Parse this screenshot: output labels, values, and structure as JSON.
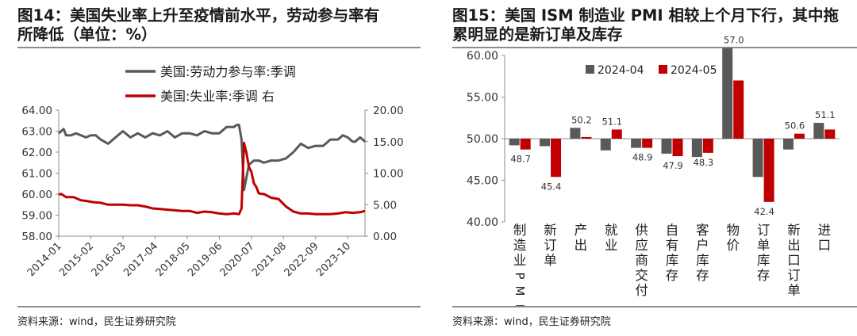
{
  "left_panel": {
    "title_line1": "图14：美国失业率上升至疫情前水平，劳动参与率有",
    "title_line2": "所降低（单位：%）",
    "source": "资料来源：wind，民生证券研究院"
  },
  "right_panel": {
    "title_line1": "图15：美国 ISM 制造业 PMI 相较上个月下行，其中拖",
    "title_line2": "累明显的是新订单及库存",
    "source": "资料来源：wind，民生证券研究院"
  },
  "colors": {
    "gray": "#595959",
    "red": "#c00000",
    "rule": "#8c8c8c"
  },
  "chart_data": [
    {
      "type": "line",
      "x_ticks": [
        "2014-01",
        "2015-02",
        "2016-03",
        "2017-04",
        "2018-05",
        "2019-06",
        "2020-07",
        "2021-08",
        "2022-09",
        "2023-10"
      ],
      "x_range": [
        "2014-01",
        "2024-05"
      ],
      "y_left": {
        "ticks": [
          "58.00",
          "59.00",
          "60.00",
          "61.00",
          "62.00",
          "63.00",
          "64.00"
        ],
        "range": [
          58,
          64
        ]
      },
      "y_right": {
        "ticks": [
          "0.00",
          "5.00",
          "10.00",
          "15.00",
          "20.00"
        ],
        "range": [
          0,
          20
        ]
      },
      "legend_position": "top-center",
      "series": [
        {
          "name": "美国:劳动力参与率:季调",
          "axis": "left",
          "color": "#595959",
          "points": [
            [
              "2014-01",
              62.9
            ],
            [
              "2014-02",
              63.0
            ],
            [
              "2014-03",
              63.1
            ],
            [
              "2014-04",
              62.8
            ],
            [
              "2014-06",
              62.8
            ],
            [
              "2014-08",
              62.9
            ],
            [
              "2014-10",
              62.8
            ],
            [
              "2014-12",
              62.7
            ],
            [
              "2015-02",
              62.8
            ],
            [
              "2015-04",
              62.8
            ],
            [
              "2015-06",
              62.6
            ],
            [
              "2015-09",
              62.4
            ],
            [
              "2015-12",
              62.7
            ],
            [
              "2016-03",
              63.0
            ],
            [
              "2016-06",
              62.7
            ],
            [
              "2016-09",
              62.9
            ],
            [
              "2016-12",
              62.7
            ],
            [
              "2017-03",
              62.9
            ],
            [
              "2017-06",
              62.8
            ],
            [
              "2017-09",
              63.0
            ],
            [
              "2017-12",
              62.7
            ],
            [
              "2018-03",
              62.9
            ],
            [
              "2018-06",
              62.9
            ],
            [
              "2018-09",
              62.8
            ],
            [
              "2018-12",
              63.0
            ],
            [
              "2019-03",
              62.9
            ],
            [
              "2019-06",
              62.9
            ],
            [
              "2019-09",
              63.2
            ],
            [
              "2019-12",
              63.2
            ],
            [
              "2020-01",
              63.3
            ],
            [
              "2020-02",
              63.3
            ],
            [
              "2020-03",
              62.6
            ],
            [
              "2020-04",
              60.2
            ],
            [
              "2020-05",
              60.8
            ],
            [
              "2020-06",
              61.4
            ],
            [
              "2020-07",
              61.5
            ],
            [
              "2020-08",
              61.6
            ],
            [
              "2020-10",
              61.6
            ],
            [
              "2020-12",
              61.5
            ],
            [
              "2021-03",
              61.6
            ],
            [
              "2021-06",
              61.6
            ],
            [
              "2021-09",
              61.7
            ],
            [
              "2021-12",
              62.0
            ],
            [
              "2022-03",
              62.4
            ],
            [
              "2022-06",
              62.2
            ],
            [
              "2022-09",
              62.3
            ],
            [
              "2022-12",
              62.3
            ],
            [
              "2023-03",
              62.6
            ],
            [
              "2023-06",
              62.6
            ],
            [
              "2023-08",
              62.8
            ],
            [
              "2023-10",
              62.7
            ],
            [
              "2023-12",
              62.5
            ],
            [
              "2024-01",
              62.5
            ],
            [
              "2024-03",
              62.7
            ],
            [
              "2024-05",
              62.5
            ]
          ]
        },
        {
          "name": "美国:失业率:季调 右",
          "axis": "right",
          "color": "#c00000",
          "points": [
            [
              "2014-01",
              6.6
            ],
            [
              "2014-02",
              6.7
            ],
            [
              "2014-04",
              6.2
            ],
            [
              "2014-07",
              6.2
            ],
            [
              "2014-10",
              5.7
            ],
            [
              "2014-12",
              5.6
            ],
            [
              "2015-03",
              5.4
            ],
            [
              "2015-06",
              5.3
            ],
            [
              "2015-09",
              5.0
            ],
            [
              "2015-12",
              5.0
            ],
            [
              "2016-03",
              5.0
            ],
            [
              "2016-06",
              4.9
            ],
            [
              "2016-09",
              4.9
            ],
            [
              "2016-12",
              4.7
            ],
            [
              "2017-03",
              4.4
            ],
            [
              "2017-06",
              4.3
            ],
            [
              "2017-09",
              4.2
            ],
            [
              "2017-12",
              4.1
            ],
            [
              "2018-03",
              4.0
            ],
            [
              "2018-06",
              4.0
            ],
            [
              "2018-09",
              3.7
            ],
            [
              "2018-12",
              3.9
            ],
            [
              "2019-03",
              3.8
            ],
            [
              "2019-06",
              3.6
            ],
            [
              "2019-09",
              3.5
            ],
            [
              "2019-12",
              3.6
            ],
            [
              "2020-02",
              3.5
            ],
            [
              "2020-03",
              4.4
            ],
            [
              "2020-04",
              14.8
            ],
            [
              "2020-05",
              13.2
            ],
            [
              "2020-06",
              11.0
            ],
            [
              "2020-07",
              10.2
            ],
            [
              "2020-08",
              8.4
            ],
            [
              "2020-09",
              7.8
            ],
            [
              "2020-10",
              6.8
            ],
            [
              "2020-11",
              6.7
            ],
            [
              "2020-12",
              6.7
            ],
            [
              "2021-03",
              6.1
            ],
            [
              "2021-06",
              5.9
            ],
            [
              "2021-09",
              4.7
            ],
            [
              "2021-12",
              3.9
            ],
            [
              "2022-03",
              3.6
            ],
            [
              "2022-06",
              3.6
            ],
            [
              "2022-09",
              3.5
            ],
            [
              "2022-12",
              3.5
            ],
            [
              "2023-03",
              3.5
            ],
            [
              "2023-06",
              3.6
            ],
            [
              "2023-09",
              3.8
            ],
            [
              "2023-12",
              3.7
            ],
            [
              "2024-03",
              3.8
            ],
            [
              "2024-05",
              4.0
            ]
          ]
        }
      ]
    },
    {
      "type": "bar",
      "categories": [
        "制造业PMI",
        "新订单",
        "产出",
        "就业",
        "供应商交付",
        "自有库存",
        "客户库存",
        "物价",
        "订单库存",
        "新出口订单",
        "进口"
      ],
      "ylim": [
        40,
        60
      ],
      "y_ticks": [
        "40.00",
        "45.00",
        "50.00",
        "55.00",
        "60.00"
      ],
      "legend_position": "top-left",
      "series": [
        {
          "name": "2024-04",
          "color": "#595959",
          "values": [
            49.2,
            49.1,
            51.3,
            48.6,
            48.9,
            48.2,
            47.8,
            60.9,
            45.4,
            48.7,
            51.9
          ]
        },
        {
          "name": "2024-05",
          "color": "#c00000",
          "values": [
            48.7,
            45.4,
            50.2,
            51.1,
            48.9,
            47.9,
            48.3,
            57.0,
            42.4,
            50.6,
            51.1
          ]
        }
      ],
      "data_labels": [
        "48.7",
        "45.4",
        "50.2",
        "51.1",
        "48.9",
        "47.9",
        "48.3",
        "57.0",
        "42.4",
        "50.6",
        "51.1"
      ]
    }
  ]
}
